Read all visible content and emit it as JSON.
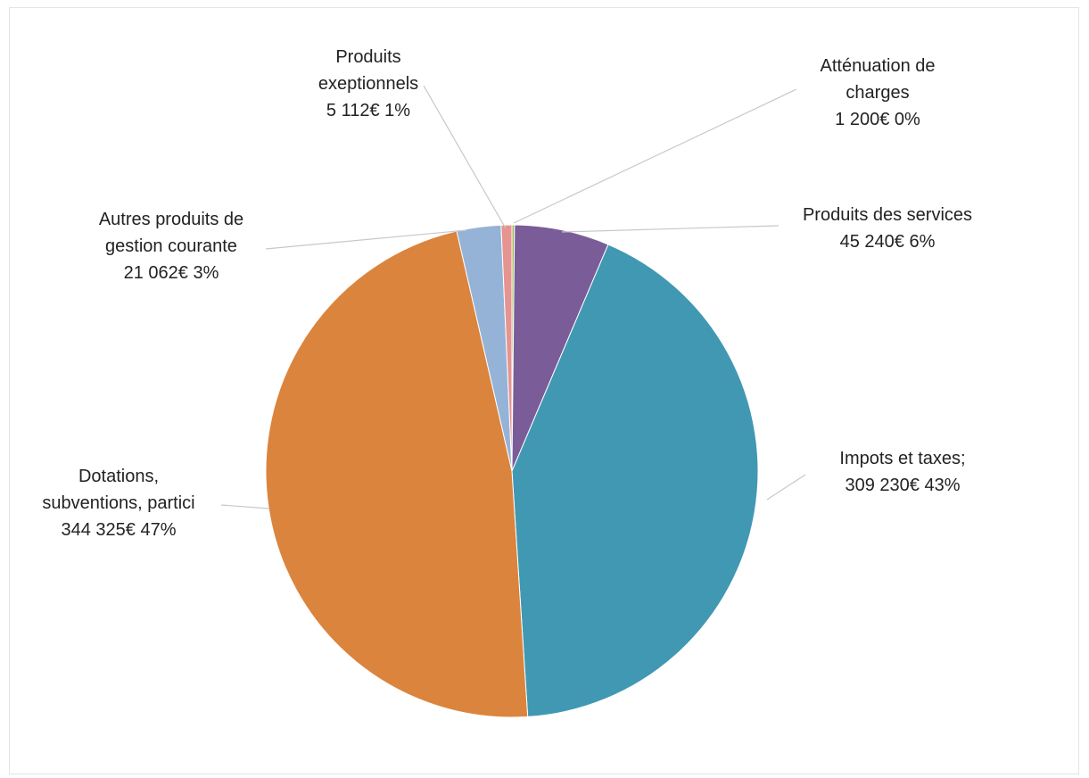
{
  "chart_data": {
    "type": "pie",
    "title": "",
    "currency": "€",
    "slices": [
      {
        "name": "Atténuation de charges",
        "label_lines": [
          "Atténuation de",
          "charges",
          "1 200€   0%"
        ],
        "value": 1200,
        "percent": 0,
        "color": "#9bbb59"
      },
      {
        "name": "Produits des services",
        "label_lines": [
          "Produits des services",
          "45 240€   6%"
        ],
        "value": 45240,
        "percent": 6,
        "color": "#7a5c99"
      },
      {
        "name": "Impots et taxes",
        "label_lines": [
          "Impots et taxes;",
          "309 230€   43%"
        ],
        "value": 309230,
        "percent": 43,
        "color": "#4198b3"
      },
      {
        "name": "Dotations, subventions, partici",
        "label_lines": [
          "Dotations,",
          "subventions, partici",
          "344 325€   47%"
        ],
        "value": 344325,
        "percent": 47,
        "color": "#db843d"
      },
      {
        "name": "Autres produits de gestion courante",
        "label_lines": [
          "Autres produits de",
          "gestion courante",
          "21  062€      3%"
        ],
        "value": 21062,
        "percent": 3,
        "color": "#95b3d7"
      },
      {
        "name": "Produits exeptionnels",
        "label_lines": [
          "Produits",
          "exeptionnels",
          "5 112€     1%"
        ],
        "value": 5112,
        "percent": 1,
        "color": "#e6948f"
      }
    ],
    "start": "12 o'clock",
    "direction": "clockwise",
    "legend": "none (data labels with leader lines)"
  }
}
